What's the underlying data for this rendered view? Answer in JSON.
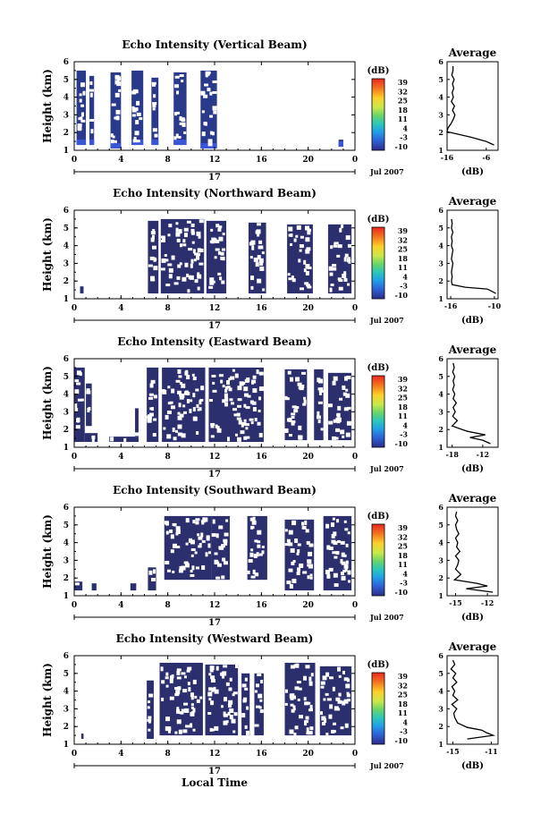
{
  "figure": {
    "xlabel_bottom": "Local Time",
    "date_label": "Jul 2007",
    "day_label": "17"
  },
  "chart_data": [
    {
      "type": "heatmap",
      "title": "Echo Intensity (Vertical Beam)",
      "ylabel": "Height (km)",
      "x_ticks": [
        "0",
        "4",
        "8",
        "12",
        "16",
        "20",
        "0"
      ],
      "y_ticks": [
        "1",
        "2",
        "3",
        "4",
        "5",
        "6"
      ],
      "xlim": [
        0,
        24
      ],
      "ylim": [
        1,
        6
      ],
      "colorbar": {
        "unit": "(dB)",
        "ticks": [
          "39",
          "32",
          "25",
          "18",
          "11",
          "4",
          "-3",
          "-10"
        ]
      },
      "data_blocks": [
        {
          "x0": 0.2,
          "x1": 1.0,
          "y0": 1.3,
          "y1": 5.5
        },
        {
          "x0": 1.3,
          "x1": 1.7,
          "y0": 1.3,
          "y1": 5.2
        },
        {
          "x0": 3.1,
          "x1": 4.0,
          "y0": 1.1,
          "y1": 5.4
        },
        {
          "x0": 4.9,
          "x1": 5.9,
          "y0": 1.3,
          "y1": 5.5
        },
        {
          "x0": 6.6,
          "x1": 7.2,
          "y0": 1.3,
          "y1": 5.1
        },
        {
          "x0": 8.5,
          "x1": 9.6,
          "y0": 1.3,
          "y1": 5.4
        },
        {
          "x0": 10.8,
          "x1": 12.2,
          "y0": 1.1,
          "y1": 5.5
        },
        {
          "x0": 22.6,
          "x1": 23.0,
          "y0": 1.2,
          "y1": 1.6
        }
      ],
      "profile": {
        "title": "Average",
        "xlabel": "(dB)",
        "x_ticks": [
          "-16",
          "-6"
        ],
        "xlim": [
          -16,
          -3
        ],
        "x": [
          -14.5,
          -14.5,
          -14.8,
          -14.2,
          -14.6,
          -14.3,
          -14.7,
          -14.4,
          -14.9,
          -14.1,
          -14.6,
          -14.0,
          -14.4,
          -15.0,
          -15.8,
          -16.0,
          -14.0,
          -10.0,
          -6.0,
          -4.0
        ],
        "y": [
          5.75,
          5.5,
          5.25,
          5.0,
          4.75,
          4.5,
          4.25,
          4.0,
          3.75,
          3.5,
          3.25,
          3.0,
          2.75,
          2.5,
          2.25,
          2.05,
          1.95,
          1.75,
          1.5,
          1.3
        ]
      }
    },
    {
      "type": "heatmap",
      "title": "Echo Intensity (Northward Beam)",
      "ylabel": "Height (km)",
      "x_ticks": [
        "0",
        "4",
        "8",
        "12",
        "16",
        "20",
        "0"
      ],
      "y_ticks": [
        "1",
        "2",
        "3",
        "4",
        "5",
        "6"
      ],
      "xlim": [
        0,
        24
      ],
      "ylim": [
        1,
        6
      ],
      "colorbar": {
        "unit": "(dB)",
        "ticks": [
          "39",
          "32",
          "25",
          "18",
          "11",
          "4",
          "-3",
          "-10"
        ]
      },
      "data_blocks": [
        {
          "x0": 0.5,
          "x1": 0.8,
          "y0": 1.3,
          "y1": 1.7
        },
        {
          "x0": 6.3,
          "x1": 7.2,
          "y0": 1.3,
          "y1": 5.4
        },
        {
          "x0": 7.4,
          "x1": 11.1,
          "y0": 1.3,
          "y1": 5.5
        },
        {
          "x0": 11.3,
          "x1": 13.0,
          "y0": 1.3,
          "y1": 5.4
        },
        {
          "x0": 14.9,
          "x1": 16.4,
          "y0": 1.3,
          "y1": 5.3
        },
        {
          "x0": 18.2,
          "x1": 20.4,
          "y0": 1.3,
          "y1": 5.2
        },
        {
          "x0": 21.7,
          "x1": 23.7,
          "y0": 1.3,
          "y1": 5.2
        }
      ],
      "profile": {
        "title": "Average",
        "xlabel": "(dB)",
        "x_ticks": [
          "-16",
          "-10"
        ],
        "xlim": [
          -16.5,
          -9.5
        ],
        "x": [
          -15.9,
          -15.8,
          -15.9,
          -15.7,
          -15.9,
          -15.8,
          -15.9,
          -15.7,
          -15.8,
          -15.9,
          -15.7,
          -15.8,
          -15.9,
          -15.8,
          -15.9,
          -15.8,
          -14.0,
          -11.0,
          -10.5,
          -9.8
        ],
        "y": [
          5.5,
          5.25,
          5.0,
          4.75,
          4.5,
          4.25,
          4.0,
          3.75,
          3.5,
          3.25,
          3.0,
          2.75,
          2.5,
          2.25,
          2.0,
          1.8,
          1.65,
          1.55,
          1.45,
          1.3
        ]
      }
    },
    {
      "type": "heatmap",
      "title": "Echo Intensity (Eastward Beam)",
      "ylabel": "Height (km)",
      "x_ticks": [
        "0",
        "4",
        "8",
        "12",
        "16",
        "20",
        "0"
      ],
      "y_ticks": [
        "1",
        "2",
        "3",
        "4",
        "5",
        "6"
      ],
      "xlim": [
        0,
        24
      ],
      "ylim": [
        1,
        6
      ],
      "colorbar": {
        "unit": "(dB)",
        "ticks": [
          "39",
          "32",
          "25",
          "18",
          "11",
          "4",
          "-3",
          "-10"
        ]
      },
      "data_blocks": [
        {
          "x0": 0.0,
          "x1": 0.9,
          "y0": 1.3,
          "y1": 5.5
        },
        {
          "x0": 0.9,
          "x1": 2.0,
          "y0": 1.3,
          "y1": 1.8
        },
        {
          "x0": 1.0,
          "x1": 1.5,
          "y0": 2.2,
          "y1": 4.6
        },
        {
          "x0": 3.0,
          "x1": 5.5,
          "y0": 1.3,
          "y1": 1.6
        },
        {
          "x0": 5.2,
          "x1": 5.5,
          "y0": 1.6,
          "y1": 3.2
        },
        {
          "x0": 6.2,
          "x1": 7.2,
          "y0": 1.3,
          "y1": 5.5
        },
        {
          "x0": 7.5,
          "x1": 11.2,
          "y0": 1.3,
          "y1": 5.5
        },
        {
          "x0": 11.5,
          "x1": 16.2,
          "y0": 1.3,
          "y1": 5.5
        },
        {
          "x0": 18.0,
          "x1": 19.9,
          "y0": 1.4,
          "y1": 5.4
        },
        {
          "x0": 20.5,
          "x1": 21.3,
          "y0": 1.4,
          "y1": 5.4
        },
        {
          "x0": 21.7,
          "x1": 23.7,
          "y0": 1.4,
          "y1": 5.2
        }
      ],
      "profile": {
        "title": "Average",
        "xlabel": "(dB)",
        "x_ticks": [
          "-18",
          "-12"
        ],
        "xlim": [
          -19,
          -9
        ],
        "x": [
          -17.8,
          -17.6,
          -17.9,
          -17.5,
          -17.8,
          -17.6,
          -17.9,
          -17.5,
          -17.8,
          -17.2,
          -17.8,
          -17.4,
          -17.9,
          -17.0,
          -18.0,
          -15.0,
          -11.5,
          -14.5,
          -12.0,
          -10.5
        ],
        "y": [
          5.75,
          5.5,
          5.25,
          5.0,
          4.75,
          4.5,
          4.25,
          4.0,
          3.75,
          3.5,
          3.25,
          3.0,
          2.75,
          2.5,
          2.2,
          1.9,
          1.7,
          1.55,
          1.4,
          1.2
        ]
      }
    },
    {
      "type": "heatmap",
      "title": "Echo Intensity (Southward Beam)",
      "ylabel": "Height (km)",
      "x_ticks": [
        "0",
        "4",
        "8",
        "12",
        "16",
        "20",
        "0"
      ],
      "y_ticks": [
        "1",
        "2",
        "3",
        "4",
        "5",
        "6"
      ],
      "xlim": [
        0,
        24
      ],
      "ylim": [
        1,
        6
      ],
      "colorbar": {
        "unit": "(dB)",
        "ticks": [
          "39",
          "32",
          "25",
          "18",
          "11",
          "4",
          "-3",
          "-10"
        ]
      },
      "data_blocks": [
        {
          "x0": 0.0,
          "x1": 0.7,
          "y0": 1.3,
          "y1": 1.8
        },
        {
          "x0": 1.5,
          "x1": 1.9,
          "y0": 1.3,
          "y1": 1.7
        },
        {
          "x0": 4.8,
          "x1": 5.3,
          "y0": 1.3,
          "y1": 1.7
        },
        {
          "x0": 6.3,
          "x1": 7.0,
          "y0": 1.3,
          "y1": 2.6
        },
        {
          "x0": 7.7,
          "x1": 11.7,
          "y0": 1.9,
          "y1": 5.5
        },
        {
          "x0": 11.7,
          "x1": 13.3,
          "y0": 1.9,
          "y1": 5.5
        },
        {
          "x0": 14.8,
          "x1": 16.5,
          "y0": 1.9,
          "y1": 5.5
        },
        {
          "x0": 18.0,
          "x1": 20.5,
          "y0": 1.3,
          "y1": 5.3
        },
        {
          "x0": 21.3,
          "x1": 23.7,
          "y0": 1.3,
          "y1": 5.5
        }
      ],
      "profile": {
        "title": "Average",
        "xlabel": "(dB)",
        "x_ticks": [
          "-15",
          "-12"
        ],
        "xlim": [
          -15.8,
          -11.0
        ],
        "x": [
          -14.9,
          -15.0,
          -14.8,
          -15.0,
          -14.9,
          -14.7,
          -15.0,
          -14.8,
          -14.9,
          -14.6,
          -15.0,
          -14.7,
          -14.8,
          -15.0,
          -14.5,
          -15.1,
          -13.0,
          -12.0,
          -14.0,
          -11.5
        ],
        "y": [
          5.75,
          5.5,
          5.25,
          5.0,
          4.75,
          4.5,
          4.25,
          4.0,
          3.75,
          3.5,
          3.25,
          3.0,
          2.75,
          2.5,
          2.2,
          1.9,
          1.7,
          1.55,
          1.4,
          1.2
        ]
      }
    },
    {
      "type": "heatmap",
      "title": "Echo Intensity (Westward Beam)",
      "ylabel": "Height (km)",
      "x_ticks": [
        "0",
        "4",
        "8",
        "12",
        "16",
        "20",
        "0"
      ],
      "y_ticks": [
        "1",
        "2",
        "3",
        "4",
        "5",
        "6"
      ],
      "xlim": [
        0,
        24
      ],
      "ylim": [
        1,
        6
      ],
      "colorbar": {
        "unit": "(dB)",
        "ticks": [
          "39",
          "32",
          "25",
          "18",
          "11",
          "4",
          "-3",
          "-10"
        ]
      },
      "data_blocks": [
        {
          "x0": 0.6,
          "x1": 0.8,
          "y0": 1.3,
          "y1": 1.6
        },
        {
          "x0": 6.2,
          "x1": 6.8,
          "y0": 1.3,
          "y1": 4.6
        },
        {
          "x0": 7.3,
          "x1": 11.0,
          "y0": 1.5,
          "y1": 5.6
        },
        {
          "x0": 11.2,
          "x1": 14.0,
          "y0": 1.5,
          "y1": 5.5
        },
        {
          "x0": 14.3,
          "x1": 15.0,
          "y0": 1.5,
          "y1": 5.0
        },
        {
          "x0": 15.4,
          "x1": 16.2,
          "y0": 1.5,
          "y1": 5.0
        },
        {
          "x0": 18.0,
          "x1": 20.6,
          "y0": 1.5,
          "y1": 5.6
        },
        {
          "x0": 21.0,
          "x1": 23.7,
          "y0": 1.5,
          "y1": 5.4
        }
      ],
      "profile": {
        "title": "Average",
        "xlabel": "(dB)",
        "x_ticks": [
          "-15",
          "-11"
        ],
        "xlim": [
          -15.6,
          -10.3
        ],
        "x": [
          -15.0,
          -14.8,
          -15.2,
          -14.7,
          -15.0,
          -14.6,
          -15.1,
          -14.8,
          -15.0,
          -14.5,
          -15.1,
          -14.6,
          -14.9,
          -14.8,
          -14.5,
          -13.5,
          -12.0,
          -11.5,
          -10.8,
          -13.5
        ],
        "y": [
          5.75,
          5.5,
          5.25,
          5.0,
          4.75,
          4.5,
          4.25,
          4.0,
          3.75,
          3.5,
          3.25,
          3.0,
          2.75,
          2.5,
          2.2,
          1.95,
          1.8,
          1.65,
          1.5,
          1.3
        ]
      }
    }
  ],
  "colors": {
    "fill": "#2b2f6e",
    "fill_vertical": "#2a3a8a",
    "fill_vertical_low": "#3a56d8",
    "colorbar": [
      "#e8271f",
      "#f5791e",
      "#fbd12a",
      "#c9e84a",
      "#67d46b",
      "#2cc8b9",
      "#21a0e6",
      "#2e63d8",
      "#2c2e8a"
    ]
  }
}
